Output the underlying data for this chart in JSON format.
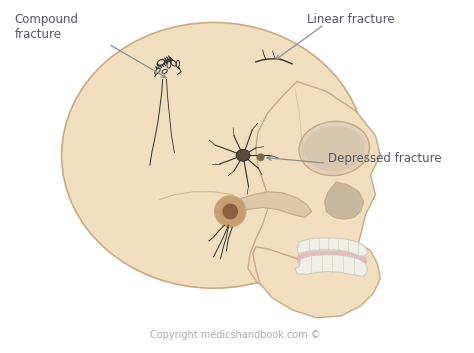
{
  "background_color": "#ffffff",
  "skull_fill": "#f2dfc0",
  "skull_fill2": "#eedcc0",
  "skull_outline": "#c8aa85",
  "skull_shadow": "#ddc8a8",
  "teeth_color": "#f0efe8",
  "teeth_outline": "#d0cfc0",
  "gum_color": "#e8b4b8",
  "gum_fill": "#daa0a8",
  "ann_color": "#8a9090",
  "text_color": "#555560",
  "frac_color": "#303030",
  "frac_color2": "#252525",
  "ear_fill": "#c8a070",
  "ear_dark": "#8a6040",
  "copyright_color": "#aaaaaa",
  "labels": {
    "compound": "Compound\nfracture",
    "linear": "Linear fracture",
    "depressed": "Depressed fracture",
    "copyright": "Copyright medicshandbook.com ©"
  },
  "figsize": [
    4.74,
    3.53
  ],
  "dpi": 100
}
